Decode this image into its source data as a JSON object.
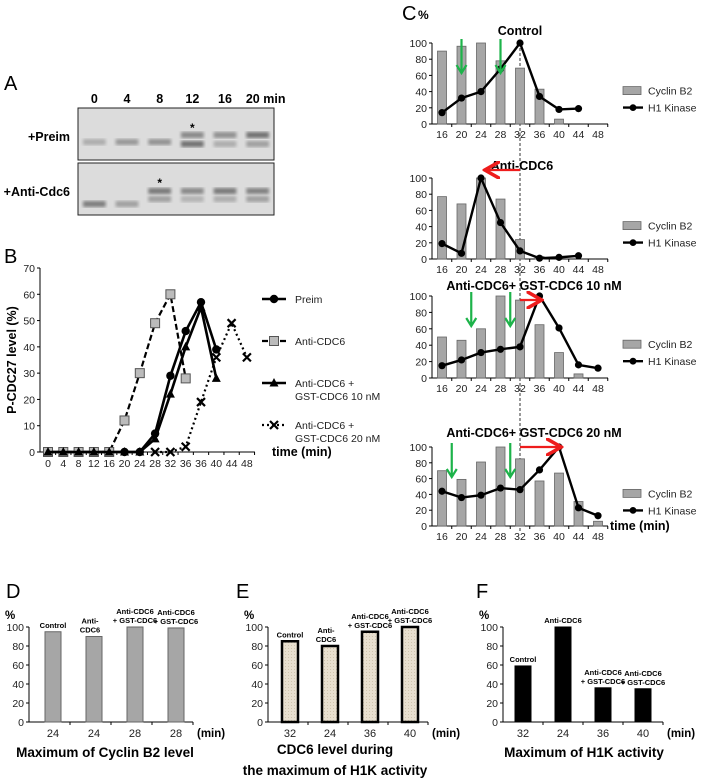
{
  "panel_labels": {
    "A": "A",
    "B": "B",
    "C": "C",
    "D": "D",
    "E": "E",
    "F": "F"
  },
  "blot": {
    "lanes": [
      "0",
      "4",
      "8",
      "12",
      "16",
      "20 min"
    ],
    "rows": [
      "+Preim",
      "+Anti-Cdc6"
    ],
    "asterisk": "*",
    "asterisk_lanes": [
      3,
      2
    ]
  },
  "colors": {
    "bar_gray": "#a6a6a6",
    "line_black": "#000000",
    "arrow_green": "#1db34a",
    "arrow_red": "#ee1c1c",
    "beige_fill": "#e6ddcc"
  },
  "chart_data": [
    {
      "id": "B",
      "type": "line",
      "ylabel": "P-CDC27 level (%)",
      "xlabel": "time (min)",
      "x_ticks": [
        "0",
        "4",
        "8",
        "12",
        "16",
        "20",
        "24",
        "28",
        "32",
        "36",
        "36",
        "40",
        "44",
        "48"
      ],
      "y_ticks": [
        "0",
        "10",
        "20",
        "30",
        "40",
        "50",
        "60",
        "70"
      ],
      "ylim": [
        0,
        70
      ],
      "legend_position": "right",
      "series": [
        {
          "name": "Preim",
          "marker": "circle",
          "style": "solid",
          "x_index": [
            0,
            1,
            2,
            3,
            4,
            5,
            6,
            7,
            8,
            9,
            10,
            11
          ],
          "values": [
            0,
            0,
            0,
            0,
            0,
            0,
            0,
            7,
            29,
            46,
            57,
            39
          ]
        },
        {
          "name": "Anti-CDC6",
          "marker": "square",
          "style": "dashed",
          "x_index": [
            0,
            1,
            2,
            3,
            4,
            5,
            6,
            7,
            8,
            9
          ],
          "values": [
            0,
            0,
            0,
            0,
            0,
            12,
            30,
            49,
            60,
            28
          ]
        },
        {
          "name": "Anti-CDC6 + GST-CDC6 10 nM",
          "legend_lines": [
            "Anti-CDC6 +",
            "GST-CDC6 10 nM"
          ],
          "marker": "triangle",
          "style": "solid",
          "x_index": [
            0,
            1,
            2,
            3,
            4,
            5,
            6,
            7,
            8,
            9,
            10,
            11
          ],
          "values": [
            0,
            0,
            0,
            0,
            0,
            0,
            0,
            5,
            22,
            40,
            55,
            28
          ]
        },
        {
          "name": "Anti-CDC6 + GST-CDC6 20 nM",
          "legend_lines": [
            "Anti-CDC6 +",
            "GST-CDC6 20 nM"
          ],
          "marker": "x",
          "style": "dotted",
          "x_index": [
            7,
            8,
            9,
            10,
            11,
            12,
            13
          ],
          "values": [
            0,
            0,
            2,
            19,
            36,
            49,
            36
          ]
        }
      ]
    },
    {
      "id": "C",
      "type": "bar+line",
      "ylabel": "%",
      "xlabel": "time (min)",
      "categories": [
        "16",
        "20",
        "24",
        "28",
        "32",
        "36",
        "40",
        "44",
        "48"
      ],
      "y_ticks": [
        "0",
        "20",
        "40",
        "60",
        "80",
        "100"
      ],
      "ylim": [
        0,
        100
      ],
      "legend": [
        "Cyclin B2",
        "H1 Kinase"
      ],
      "legend_position": "right",
      "subplots": [
        {
          "title": "Control",
          "cyclin_b2": [
            90,
            96,
            100,
            78,
            69,
            43,
            6,
            null,
            null
          ],
          "h1_kinase": [
            14,
            32,
            40,
            68,
            100,
            34,
            18,
            19,
            null
          ],
          "green_arrows_at": [
            1,
            3
          ],
          "red_arrow": null
        },
        {
          "title": "Anti-CDC6",
          "cyclin_b2": [
            77,
            68,
            100,
            74,
            24,
            3,
            null,
            null,
            null
          ],
          "h1_kinase": [
            19,
            7,
            100,
            45,
            10,
            1,
            2,
            4,
            null
          ],
          "green_arrows_at": [],
          "red_arrow": {
            "from": 4,
            "to": 2
          }
        },
        {
          "title": "Anti-CDC6+ GST-CDC6 10 nM",
          "cyclin_b2": [
            50,
            46,
            60,
            100,
            95,
            65,
            31,
            5,
            null
          ],
          "h1_kinase": [
            15,
            22,
            31,
            35,
            38,
            100,
            61,
            16,
            12
          ],
          "green_arrows_at": [
            1.5,
            3.5
          ],
          "red_arrow": {
            "from": 4,
            "to": 5
          }
        },
        {
          "title": "Anti-CDC6+ GST-CDC6 20 nM",
          "cyclin_b2": [
            70,
            59,
            81,
            100,
            85,
            57,
            67,
            31,
            6
          ],
          "h1_kinase": [
            44,
            36,
            39,
            48,
            46,
            71,
            100,
            23,
            13
          ],
          "green_arrows_at": [
            0.5,
            3.5
          ],
          "red_arrow": {
            "from": 4,
            "to": 6
          }
        }
      ]
    },
    {
      "id": "D",
      "type": "bar",
      "title": "Maximum of Cyclin B2 level",
      "ylabel": "%",
      "xlabel": "(min)",
      "categories": [
        "24",
        "24",
        "28",
        "28"
      ],
      "bar_labels": [
        [
          "Control"
        ],
        [
          "Anti-",
          "CDC6"
        ],
        [
          "Anti-CDC6",
          "+ GST-CDC6"
        ],
        [
          "Anti-CDC6",
          "+ GST-CDC6"
        ]
      ],
      "values": [
        95,
        90,
        100,
        99
      ],
      "y_ticks": [
        "0",
        "20",
        "40",
        "60",
        "80",
        "100"
      ],
      "ylim": [
        0,
        100
      ]
    },
    {
      "id": "E",
      "type": "bar",
      "title": "CDC6 level during",
      "title_line2": "the maximum of H1K activity",
      "ylabel": "%",
      "xlabel": "(min)",
      "categories": [
        "32",
        "24",
        "36",
        "40"
      ],
      "bar_labels": [
        [
          "Control"
        ],
        [
          "Anti-",
          "CDC6"
        ],
        [
          "Anti-CDC6",
          "+ GST-CDC6"
        ],
        [
          "Anti-CDC6",
          "+ GST-CDC6"
        ]
      ],
      "values": [
        85,
        80,
        95,
        100
      ],
      "y_ticks": [
        "0",
        "20",
        "40",
        "60",
        "80",
        "100"
      ],
      "ylim": [
        0,
        100
      ]
    },
    {
      "id": "F",
      "type": "bar",
      "title": "Maximum of H1K activity",
      "ylabel": "%",
      "xlabel": "(min)",
      "categories": [
        "32",
        "24",
        "36",
        "40"
      ],
      "bar_labels": [
        [
          "Control"
        ],
        [
          "Anti-CDC6"
        ],
        [
          "Anti-CDC6",
          "+ GST-CDC6"
        ],
        [
          "Anti-CDC6",
          "+ GST-CDC6"
        ]
      ],
      "values": [
        59,
        100,
        36,
        35
      ],
      "y_ticks": [
        "0",
        "20",
        "40",
        "60",
        "80",
        "100"
      ],
      "ylim": [
        0,
        100
      ]
    }
  ]
}
